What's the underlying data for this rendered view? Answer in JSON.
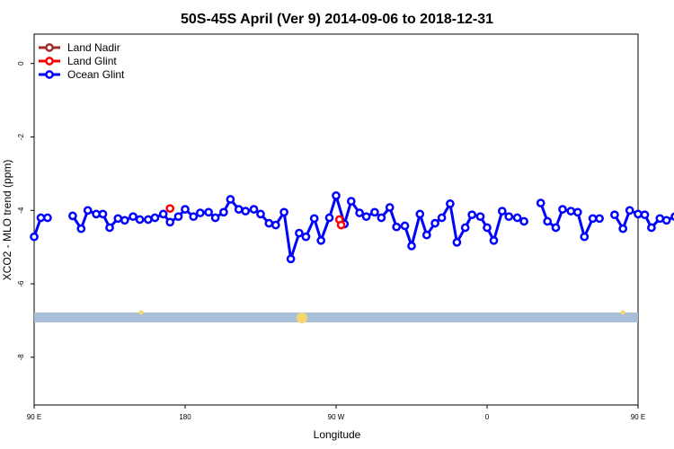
{
  "chart_data": {
    "type": "line",
    "title": "50S-45S April (Ver 9)   2014-09-06 to 2018-12-31",
    "xlabel": "Longitude",
    "ylabel": "XCO2 - MLO trend (ppm)",
    "xlim": [
      90,
      450
    ],
    "ylim": [
      -9.3,
      0.8
    ],
    "x_ticks": [
      {
        "value": 90,
        "label": "90 E"
      },
      {
        "value": 180,
        "label": "180"
      },
      {
        "value": 270,
        "label": "90 W"
      },
      {
        "value": 360,
        "label": "0"
      },
      {
        "value": 450,
        "label": "90 E"
      },
      {
        "value": 540,
        "label": "180"
      }
    ],
    "y_ticks": [
      {
        "value": 0,
        "label": "0"
      },
      {
        "value": -2,
        "label": "-2"
      },
      {
        "value": -4,
        "label": "-4"
      },
      {
        "value": -6,
        "label": "-6"
      },
      {
        "value": -8,
        "label": "-8"
      }
    ],
    "legend": {
      "position": "top-left",
      "entries": [
        {
          "name": "Land Nadir",
          "color": "#a52a2a"
        },
        {
          "name": "Land Glint",
          "color": "#ff0000"
        },
        {
          "name": "Ocean Glint",
          "color": "#0000ff"
        }
      ]
    },
    "series": [
      {
        "name": "Ocean Glint",
        "color": "#0000ff",
        "segments": [
          [
            [
              90,
              -4.72
            ],
            [
              94,
              -4.2
            ],
            [
              98,
              -4.2
            ]
          ],
          [
            [
              113,
              -4.15
            ],
            [
              118,
              -4.5
            ],
            [
              122,
              -4.0
            ],
            [
              127,
              -4.1
            ],
            [
              131,
              -4.1
            ],
            [
              135,
              -4.47
            ],
            [
              140,
              -4.22
            ],
            [
              144,
              -4.27
            ],
            [
              149,
              -4.17
            ],
            [
              153,
              -4.25
            ],
            [
              158,
              -4.25
            ],
            [
              162,
              -4.2
            ],
            [
              167,
              -4.1
            ],
            [
              171,
              -4.32
            ],
            [
              176,
              -4.17
            ],
            [
              180,
              -3.97
            ],
            [
              185,
              -4.17
            ],
            [
              189,
              -4.07
            ],
            [
              194,
              -4.05
            ],
            [
              198,
              -4.2
            ],
            [
              203,
              -4.05
            ],
            [
              207,
              -3.7
            ],
            [
              212,
              -3.97
            ],
            [
              216,
              -4.02
            ],
            [
              221,
              -3.97
            ],
            [
              225,
              -4.1
            ],
            [
              230,
              -4.35
            ],
            [
              234,
              -4.4
            ],
            [
              239,
              -4.05
            ],
            [
              243,
              -5.32
            ],
            [
              248,
              -4.62
            ],
            [
              252,
              -4.72
            ],
            [
              257,
              -4.22
            ],
            [
              261,
              -4.82
            ],
            [
              266,
              -4.2
            ],
            [
              270,
              -3.6
            ],
            [
              275,
              -4.37
            ],
            [
              279,
              -3.75
            ],
            [
              284,
              -4.07
            ],
            [
              288,
              -4.17
            ],
            [
              293,
              -4.05
            ],
            [
              297,
              -4.2
            ],
            [
              302,
              -3.92
            ],
            [
              306,
              -4.45
            ],
            [
              311,
              -4.42
            ],
            [
              315,
              -4.97
            ],
            [
              320,
              -4.1
            ],
            [
              324,
              -4.67
            ],
            [
              329,
              -4.35
            ],
            [
              333,
              -4.2
            ],
            [
              338,
              -3.82
            ],
            [
              342,
              -4.87
            ],
            [
              347,
              -4.47
            ],
            [
              351,
              -4.12
            ],
            [
              356,
              -4.17
            ],
            [
              360,
              -4.47
            ],
            [
              364,
              -4.82
            ],
            [
              369,
              -4.02
            ],
            [
              373,
              -4.17
            ],
            [
              378,
              -4.2
            ],
            [
              382,
              -4.3
            ]
          ],
          [
            [
              392,
              -3.8
            ],
            [
              396,
              -4.3
            ],
            [
              401,
              -4.47
            ],
            [
              405,
              -3.97
            ],
            [
              410,
              -4.02
            ],
            [
              414,
              -4.05
            ],
            [
              418,
              -4.72
            ],
            [
              423,
              -4.22
            ],
            [
              427,
              -4.22
            ]
          ],
          [
            [
              436,
              -4.12
            ],
            [
              441,
              -4.5
            ],
            [
              445,
              -4.0
            ],
            [
              450,
              -4.1
            ],
            [
              454,
              -4.12
            ],
            [
              458,
              -4.47
            ],
            [
              463,
              -4.22
            ],
            [
              467,
              -4.27
            ],
            [
              472,
              -4.17
            ],
            [
              476,
              -4.25
            ],
            [
              481,
              -4.25
            ],
            [
              485,
              -4.2
            ],
            [
              490,
              -4.1
            ],
            [
              494,
              -4.32
            ]
          ]
        ]
      },
      {
        "name": "Land Glint",
        "color": "#ff0000",
        "points": [
          [
            171,
            -3.95
          ],
          [
            272,
            -4.25
          ],
          [
            273,
            -4.4
          ],
          [
            488,
            -3.95
          ]
        ]
      }
    ]
  }
}
